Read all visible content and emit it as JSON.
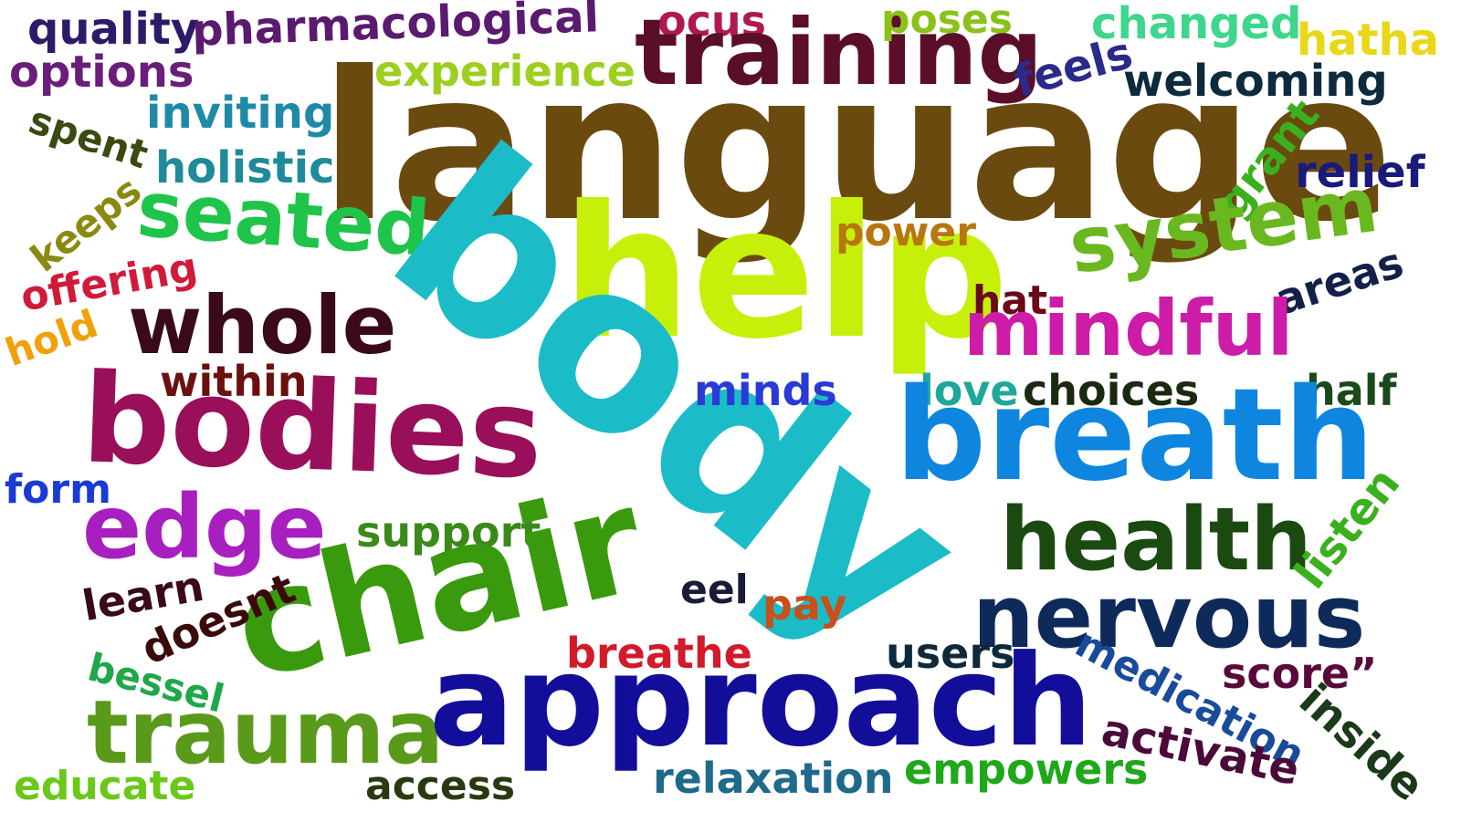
{
  "words": {
    "quality": {
      "text": "quality",
      "color": "#2d1b69"
    },
    "pharmacological": {
      "text": "pharmacological",
      "color": "#5a1a6e"
    },
    "options": {
      "text": "options",
      "color": "#6a1d7a"
    },
    "ocus": {
      "text": "ocus",
      "color": "#b0194f"
    },
    "training": {
      "text": "training",
      "color": "#5b0e2a"
    },
    "poses": {
      "text": "poses",
      "color": "#8ac21a"
    },
    "changed": {
      "text": "changed",
      "color": "#3dd68c"
    },
    "hatha": {
      "text": "hatha",
      "color": "#e8d817"
    },
    "experience": {
      "text": "experience",
      "color": "#9ccf1e"
    },
    "feels": {
      "text": "feels",
      "color": "#2a2a8a"
    },
    "welcoming": {
      "text": "welcoming",
      "color": "#0e2a3d"
    },
    "language": {
      "text": "language",
      "color": "#6b4a10"
    },
    "inviting": {
      "text": "inviting",
      "color": "#1f8aa8"
    },
    "spent": {
      "text": "spent",
      "color": "#3a4a10"
    },
    "holistic": {
      "text": "holistic",
      "color": "#1f8a9a"
    },
    "grant": {
      "text": "grant",
      "color": "#3ab01f"
    },
    "relief": {
      "text": "relief",
      "color": "#1a1a7a"
    },
    "seated": {
      "text": "seated",
      "color": "#1fc44a"
    },
    "keeps": {
      "text": "keeps",
      "color": "#8a8a10"
    },
    "system": {
      "text": "system",
      "color": "#6ab81f"
    },
    "help": {
      "text": "help",
      "color": "#c6f00a"
    },
    "power": {
      "text": "power",
      "color": "#b8760e"
    },
    "offering": {
      "text": "offering",
      "color": "#d11a3a"
    },
    "areas": {
      "text": "areas",
      "color": "#14204a"
    },
    "whole": {
      "text": "whole",
      "color": "#3a0a1a"
    },
    "hat": {
      "text": "hat",
      "color": "#6a0a1a"
    },
    "mindful": {
      "text": "mindful",
      "color": "#cc1ca8"
    },
    "hold": {
      "text": "hold",
      "color": "#f0a10a"
    },
    "body": {
      "text": "body",
      "color": "#1bbcc8"
    },
    "within": {
      "text": "within",
      "color": "#6a1010"
    },
    "minds": {
      "text": "minds",
      "color": "#2a3ad6"
    },
    "love": {
      "text": "love",
      "color": "#1fa89a"
    },
    "choices": {
      "text": "choices",
      "color": "#1a2a10"
    },
    "half": {
      "text": "half",
      "color": "#1a4a1a"
    },
    "bodies": {
      "text": "bodies",
      "color": "#9a0f5a"
    },
    "breath": {
      "text": "breath",
      "color": "#0e86e0"
    },
    "form": {
      "text": "form",
      "color": "#1a3ad6"
    },
    "edge": {
      "text": "edge",
      "color": "#a81fc0"
    },
    "support": {
      "text": "support",
      "color": "#3a8a1a"
    },
    "health": {
      "text": "health",
      "color": "#1a4a10"
    },
    "listen": {
      "text": "listen",
      "color": "#3ab01f"
    },
    "learn": {
      "text": "learn",
      "color": "#3a0a1a"
    },
    "chair": {
      "text": "chair",
      "color": "#3a9a0e"
    },
    "doesnt": {
      "text": "doesnt",
      "color": "#3a0a0a"
    },
    "eel": {
      "text": "eel",
      "color": "#1a1a3a"
    },
    "pay": {
      "text": "pay",
      "color": "#c8501a"
    },
    "nervous": {
      "text": "nervous",
      "color": "#0e2a5a"
    },
    "bessel": {
      "text": "bessel",
      "color": "#1fa84a"
    },
    "breathe": {
      "text": "breathe",
      "color": "#d11a2a"
    },
    "users": {
      "text": "users",
      "color": "#0e2a3a"
    },
    "medication": {
      "text": "medication",
      "color": "#1a4a9a"
    },
    "score": {
      "text": "score”",
      "color": "#5a0a3a"
    },
    "trauma": {
      "text": "trauma",
      "color": "#5a9a1a"
    },
    "approach": {
      "text": "approach",
      "color": "#120e9a"
    },
    "inside": {
      "text": "inside",
      "color": "#1a3a1a"
    },
    "activate": {
      "text": "activate",
      "color": "#4a0a3a"
    },
    "educate": {
      "text": "educate",
      "color": "#6ac81a"
    },
    "access": {
      "text": "access",
      "color": "#2a3a10"
    },
    "relaxation": {
      "text": "relaxation",
      "color": "#1f6a8a"
    },
    "empowers": {
      "text": "empowers",
      "color": "#1fa81a"
    }
  }
}
